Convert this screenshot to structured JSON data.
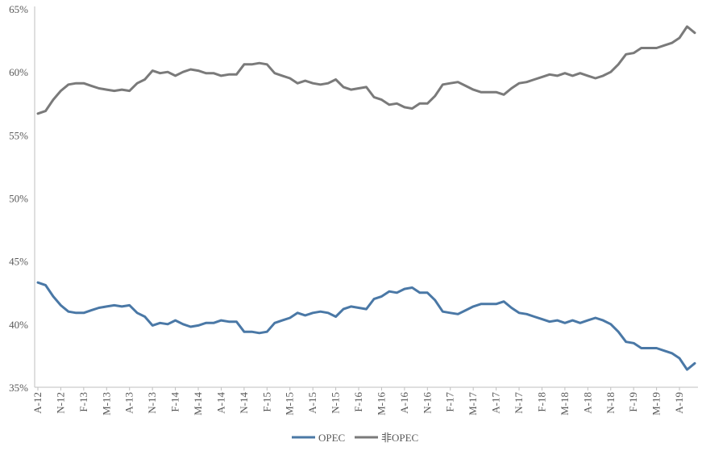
{
  "chart_data": {
    "type": "line",
    "title": "",
    "xlabel": "",
    "ylabel": "",
    "ylim": [
      35,
      65
    ],
    "y_ticks": [
      "35%",
      "40%",
      "45%",
      "50%",
      "55%",
      "60%",
      "65%"
    ],
    "y_tick_values": [
      35,
      40,
      45,
      50,
      55,
      60,
      65
    ],
    "x_tick_labels": [
      "A-12",
      "N-12",
      "F-13",
      "M-13",
      "A-13",
      "N-13",
      "F-14",
      "M-14",
      "A-14",
      "N-14",
      "F-15",
      "M-15",
      "A-15",
      "N-15",
      "F-16",
      "M-16",
      "A-16",
      "N-16",
      "F-17",
      "M-17",
      "A-17",
      "N-17",
      "F-18",
      "M-18",
      "A-18",
      "N-18",
      "F-19",
      "M-19",
      "A-19"
    ],
    "grid": false,
    "legend_position": "bottom",
    "series": [
      {
        "name": "OPEC",
        "color": "#4a78a6",
        "values": [
          43.3,
          43.1,
          42.2,
          41.5,
          41.0,
          40.9,
          40.9,
          41.1,
          41.3,
          41.4,
          41.5,
          41.4,
          41.5,
          40.9,
          40.6,
          39.9,
          40.1,
          40.0,
          40.3,
          40.0,
          39.8,
          39.9,
          40.1,
          40.1,
          40.3,
          40.2,
          40.2,
          39.4,
          39.4,
          39.3,
          39.4,
          40.1,
          40.3,
          40.5,
          40.9,
          40.7,
          40.9,
          41.0,
          40.9,
          40.6,
          41.2,
          41.4,
          41.3,
          41.2,
          42.0,
          42.2,
          42.6,
          42.5,
          42.8,
          42.9,
          42.5,
          42.5,
          41.9,
          41.0,
          40.9,
          40.8,
          41.1,
          41.4,
          41.6,
          41.6,
          41.6,
          41.8,
          41.3,
          40.9,
          40.8,
          40.6,
          40.4,
          40.2,
          40.3,
          40.1,
          40.3,
          40.1,
          40.3,
          40.5,
          40.3,
          40.0,
          39.4,
          38.6,
          38.5,
          38.1,
          38.1,
          38.1,
          37.9,
          37.7,
          37.3,
          36.4,
          36.9
        ]
      },
      {
        "name": "非OPEC",
        "color": "#7a7a7a",
        "values": [
          56.7,
          56.9,
          57.8,
          58.5,
          59.0,
          59.1,
          59.1,
          58.9,
          58.7,
          58.6,
          58.5,
          58.6,
          58.5,
          59.1,
          59.4,
          60.1,
          59.9,
          60.0,
          59.7,
          60.0,
          60.2,
          60.1,
          59.9,
          59.9,
          59.7,
          59.8,
          59.8,
          60.6,
          60.6,
          60.7,
          60.6,
          59.9,
          59.7,
          59.5,
          59.1,
          59.3,
          59.1,
          59.0,
          59.1,
          59.4,
          58.8,
          58.6,
          58.7,
          58.8,
          58.0,
          57.8,
          57.4,
          57.5,
          57.2,
          57.1,
          57.5,
          57.5,
          58.1,
          59.0,
          59.1,
          59.2,
          58.9,
          58.6,
          58.4,
          58.4,
          58.4,
          58.2,
          58.7,
          59.1,
          59.2,
          59.4,
          59.6,
          59.8,
          59.7,
          59.9,
          59.7,
          59.9,
          59.7,
          59.5,
          59.7,
          60.0,
          60.6,
          61.4,
          61.5,
          61.9,
          61.9,
          61.9,
          62.1,
          62.3,
          62.7,
          63.6,
          63.1
        ]
      }
    ]
  }
}
